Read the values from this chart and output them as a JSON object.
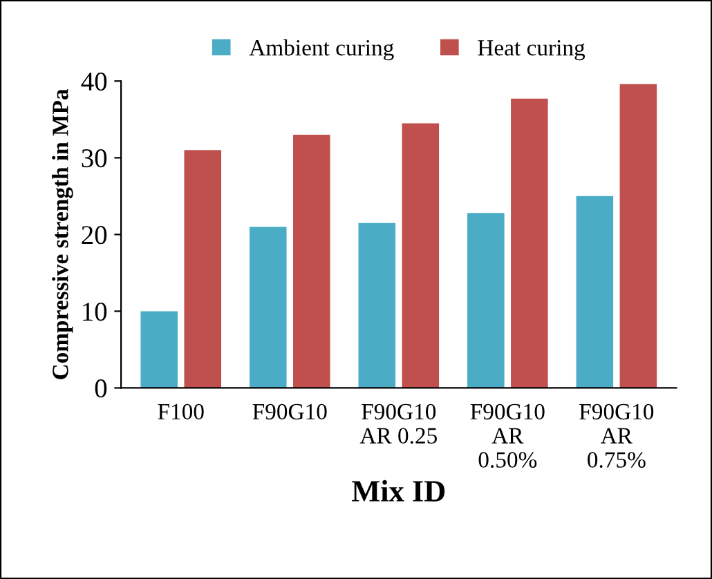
{
  "chart_data": {
    "type": "bar",
    "xlabel": "Mix ID",
    "ylabel": "Compressive strength in MPa",
    "categories": [
      "F100",
      "F90G10",
      "F90G10\nAR 0.25",
      "F90G10\nAR\n0.50%",
      "F90G10\nAR\n0.75%"
    ],
    "series": [
      {
        "name": "Ambient curing",
        "color": "#4bacc6",
        "values": [
          10,
          21,
          21.5,
          22.8,
          25
        ]
      },
      {
        "name": "Heat curing",
        "color": "#c0504d",
        "values": [
          31,
          33,
          34.5,
          37.7,
          39.6
        ]
      }
    ],
    "ylim": [
      0,
      40
    ],
    "yticks": [
      0,
      10,
      20,
      30,
      40
    ],
    "grid": false,
    "legend": "top"
  }
}
